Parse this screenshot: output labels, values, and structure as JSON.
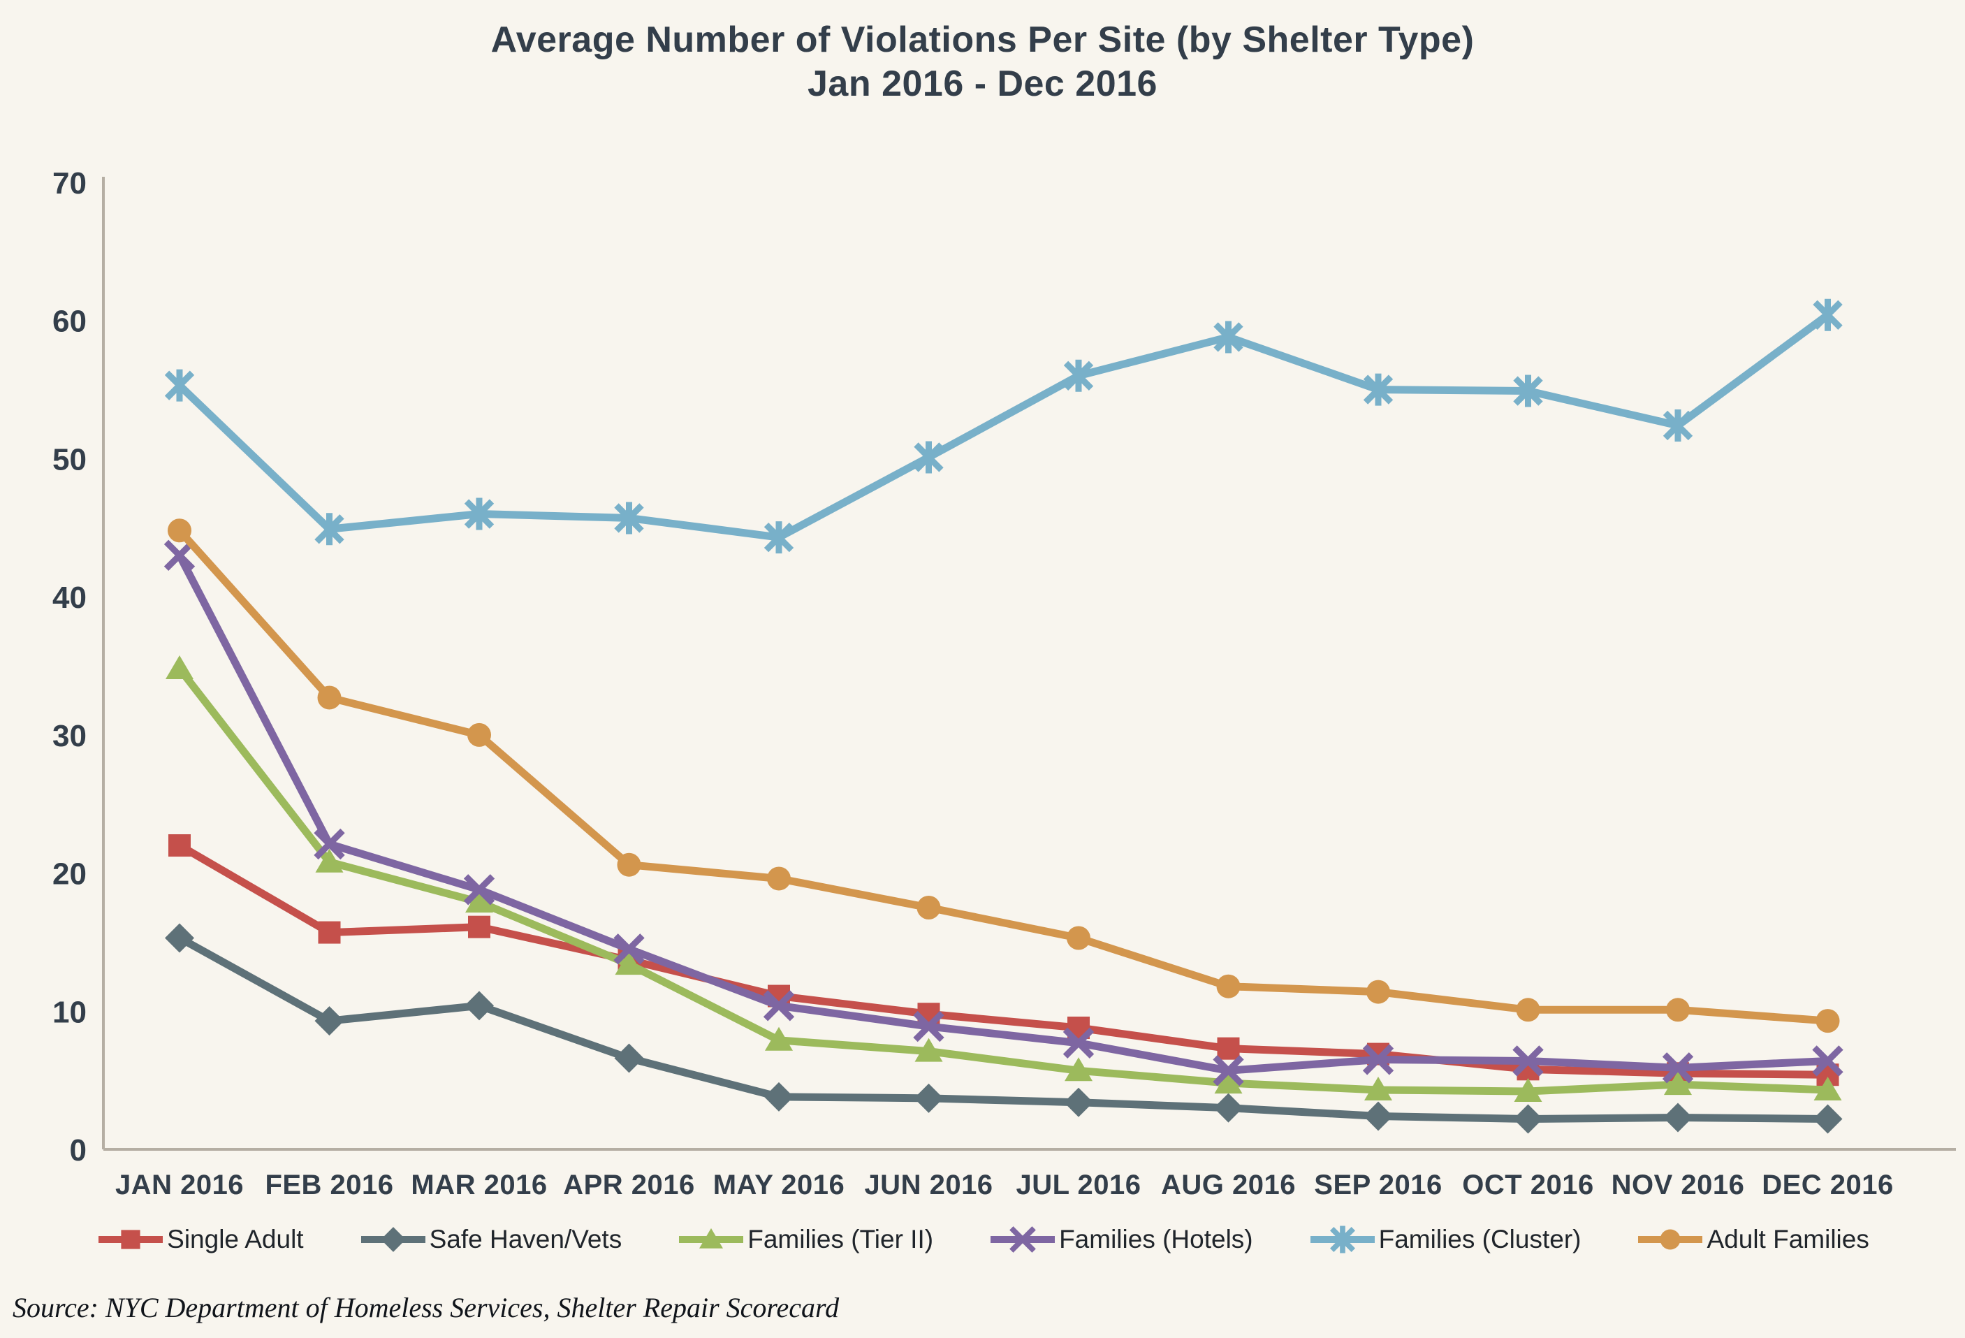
{
  "title": {
    "line1": "Average Number of Violations Per Site (by Shelter Type)",
    "line2": "Jan 2016 - Dec 2016"
  },
  "source": "Source:  NYC Department of Homeless Services, Shelter Repair Scorecard",
  "colors": {
    "background": "#f8f5ee",
    "title_text": "#333e4a",
    "tick_text": "#333e4a",
    "legend_text": "#20252b",
    "axis_line": "#b5aea3",
    "source_text": "#10141a"
  },
  "chart_data": {
    "type": "line",
    "title": "Average Number of Violations Per Site (by Shelter Type) Jan 2016 - Dec 2016",
    "xlabel": "",
    "ylabel": "",
    "ylim": [
      0,
      70
    ],
    "yticks": [
      0,
      10,
      20,
      30,
      40,
      50,
      60,
      70
    ],
    "grid": false,
    "legend_position": "bottom",
    "categories": [
      "JAN 2016",
      "FEB 2016",
      "MAR 2016",
      "APR 2016",
      "MAY 2016",
      "JUN 2016",
      "JUL 2016",
      "AUG 2016",
      "SEP 2016",
      "OCT 2016",
      "NOV 2016",
      "DEC 2016"
    ],
    "series": [
      {
        "name": "Single Adult",
        "color": "#c5504b",
        "marker": "square",
        "values": [
          22.0,
          15.7,
          16.1,
          13.7,
          11.1,
          9.8,
          8.8,
          7.3,
          6.9,
          5.8,
          5.5,
          5.4
        ]
      },
      {
        "name": "Safe Haven/Vets",
        "color": "#5e7178",
        "marker": "diamond",
        "values": [
          15.3,
          9.3,
          10.4,
          6.6,
          3.8,
          3.7,
          3.4,
          3.0,
          2.4,
          2.2,
          2.3,
          2.2
        ]
      },
      {
        "name": "Families (Tier II)",
        "color": "#9cba5c",
        "marker": "triangle",
        "values": [
          34.8,
          20.8,
          17.9,
          13.4,
          7.9,
          7.1,
          5.7,
          4.8,
          4.3,
          4.2,
          4.7,
          4.3
        ]
      },
      {
        "name": "Families (Hotels)",
        "color": "#7e66a2",
        "marker": "x",
        "values": [
          43.0,
          22.1,
          18.8,
          14.5,
          10.4,
          8.9,
          7.7,
          5.7,
          6.5,
          6.4,
          5.9,
          6.4
        ]
      },
      {
        "name": "Families (Cluster)",
        "color": "#78b0c9",
        "marker": "asterisk",
        "values": [
          55.3,
          44.9,
          46.0,
          45.7,
          44.3,
          50.1,
          56.0,
          58.8,
          55.0,
          54.9,
          52.4,
          60.4
        ]
      },
      {
        "name": "Adult Families",
        "color": "#d3964d",
        "marker": "circle",
        "values": [
          44.8,
          32.7,
          30.0,
          20.6,
          19.6,
          17.5,
          15.3,
          11.8,
          11.4,
          10.1,
          10.1,
          9.3
        ]
      }
    ]
  }
}
